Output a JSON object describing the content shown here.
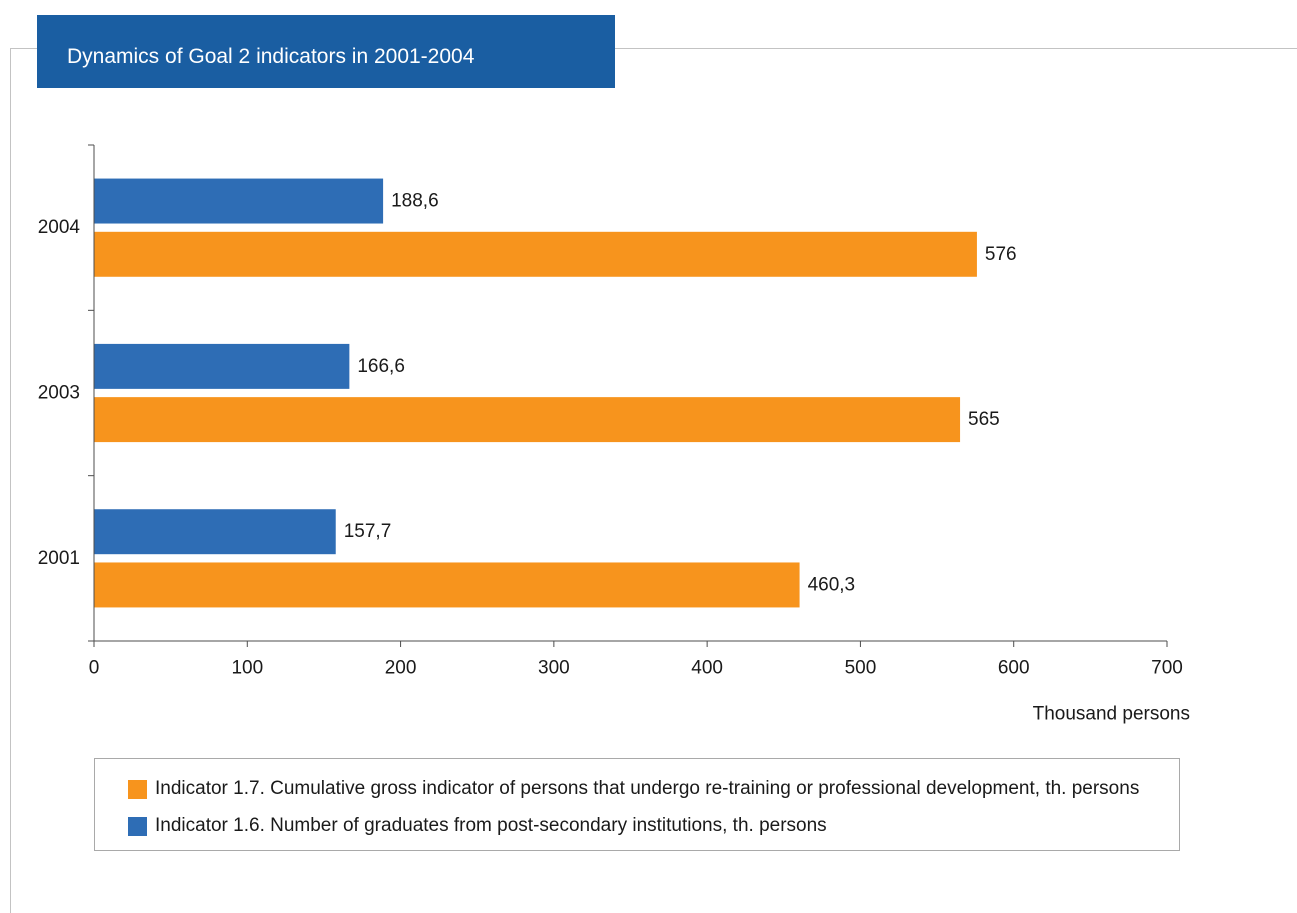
{
  "colors": {
    "title_banner": "#1a5ea2",
    "title_text": "#ffffff",
    "frame_line": "#c3c3c3",
    "axis": "#4d4d4d",
    "text": "#1a1a1a",
    "legend_border": "#a9a9a9"
  },
  "chart_data": {
    "type": "bar",
    "orientation": "horizontal",
    "title": "Dynamics of Goal 2 indicators in 2001-2004",
    "categories": [
      "2001",
      "2003",
      "2004"
    ],
    "series": [
      {
        "name": "Indicator 1.7. Cumulative gross indicator of persons that undergo re-training or professional development, th. persons",
        "color": "#f7941d",
        "values": [
          460.3,
          565,
          576
        ],
        "labels": [
          "460,3",
          "565",
          "576"
        ]
      },
      {
        "name": "Indicator 1.6. Number of graduates from post-secondary institutions, th. persons",
        "color": "#2e6db5",
        "values": [
          157.7,
          166.6,
          188.6
        ],
        "labels": [
          "157,7",
          "166,6",
          "188,6"
        ]
      }
    ],
    "xlabel": "Thousand persons",
    "xlim": [
      0,
      700
    ],
    "xticks": [
      0,
      100,
      200,
      300,
      400,
      500,
      600,
      700
    ],
    "grid": false,
    "legend_position": "bottom"
  }
}
